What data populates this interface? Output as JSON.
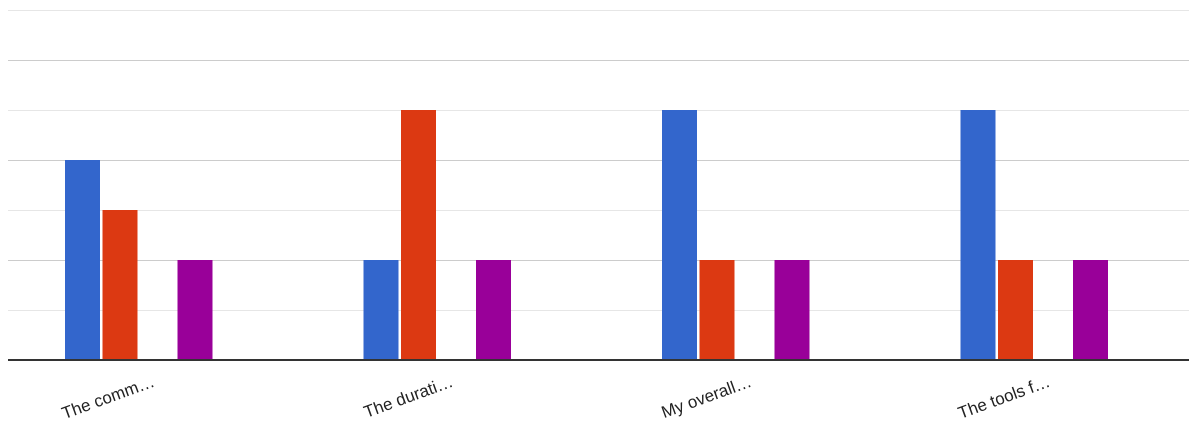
{
  "chart_data": {
    "type": "bar",
    "title": "",
    "xlabel": "",
    "ylabel": "",
    "categories": [
      "The comm…",
      "The durati…",
      "My overall…",
      "The tools f…"
    ],
    "series": [
      {
        "values": [
          4,
          2,
          5,
          5
        ],
        "color": "#3366cc"
      },
      {
        "values": [
          3,
          5,
          2,
          2
        ],
        "color": "#dc3912"
      },
      {
        "values": [
          0,
          0,
          0,
          0
        ],
        "color": "#ff9900"
      },
      {
        "values": [
          2,
          2,
          2,
          2
        ],
        "color": "#990099"
      }
    ],
    "ylim": [
      0,
      7
    ],
    "grid": true,
    "legend": "none"
  }
}
